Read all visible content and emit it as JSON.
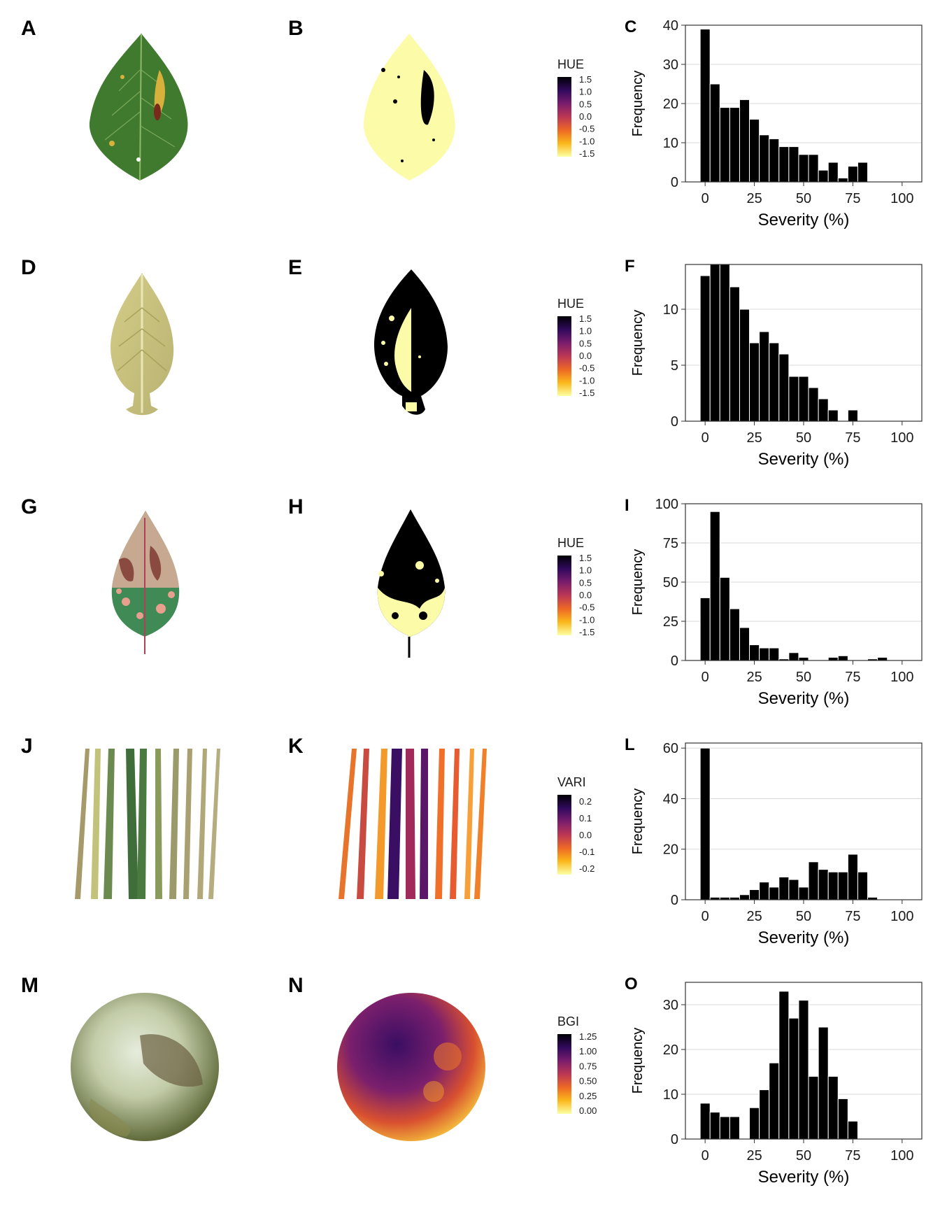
{
  "panels": [
    {
      "letter": "A",
      "kind": "leaf-photo",
      "palette": {
        "base": "#3f7a2e",
        "dark": "#2d5c20",
        "spot": "#d8b13c",
        "lesion": "#7a2a1a"
      }
    },
    {
      "letter": "B",
      "kind": "hue-mask",
      "colorbar": "cb1"
    },
    {
      "letter": "C",
      "kind": "histogram",
      "chart": 0
    },
    {
      "letter": "D",
      "kind": "leaf-photo",
      "palette": {
        "base": "#c9c27a",
        "dark": "#a8a35a",
        "spot": "#e2dca0",
        "lesion": "#b5ad68"
      }
    },
    {
      "letter": "E",
      "kind": "hue-mask",
      "colorbar": "cb2"
    },
    {
      "letter": "F",
      "kind": "histogram",
      "chart": 1
    },
    {
      "letter": "G",
      "kind": "leaf-photo",
      "palette": {
        "base": "#3f8a55",
        "dark": "#8a4a40",
        "spot": "#e8a08e",
        "lesion": "#c7a890"
      }
    },
    {
      "letter": "H",
      "kind": "hue-mask",
      "colorbar": "cb3"
    },
    {
      "letter": "I",
      "kind": "histogram",
      "chart": 2
    },
    {
      "letter": "J",
      "kind": "grass-photo"
    },
    {
      "letter": "K",
      "kind": "index-map",
      "colorbar": "cb4"
    },
    {
      "letter": "L",
      "kind": "histogram",
      "chart": 3
    },
    {
      "letter": "M",
      "kind": "dish-photo"
    },
    {
      "letter": "N",
      "kind": "index-map",
      "colorbar": "cb5"
    },
    {
      "letter": "O",
      "kind": "histogram",
      "chart": 4
    }
  ],
  "colorbars": {
    "cb1": {
      "title": "HUE",
      "ticks": [
        "1.5",
        "1.0",
        "0.5",
        "0.0",
        "-0.5",
        "-1.0",
        "-1.5"
      ]
    },
    "cb2": {
      "title": "HUE",
      "ticks": [
        "1.5",
        "1.0",
        "0.5",
        "0.0",
        "-0.5",
        "-1.0",
        "-1.5"
      ]
    },
    "cb3": {
      "title": "HUE",
      "ticks": [
        "1.5",
        "1.0",
        "0.5",
        "0.0",
        "-0.5",
        "-1.0",
        "-1.5"
      ]
    },
    "cb4": {
      "title": "VARI",
      "ticks": [
        "0.2",
        "0.1",
        "0.0",
        "-0.1",
        "-0.2"
      ]
    },
    "cb5": {
      "title": "BGI",
      "ticks": [
        "1.25",
        "1.00",
        "0.75",
        "0.50",
        "0.25",
        "0.00"
      ]
    }
  },
  "colors": {
    "bar": "#000000",
    "grid": "#d9d9d9",
    "frame": "#333333",
    "inferno": [
      "#000004",
      "#320a5e",
      "#781c6d",
      "#bc3754",
      "#ed6925",
      "#fbb61a",
      "#fcffa4"
    ],
    "mask_light": "#fbfba8",
    "mask_dark": "#000000"
  },
  "chart_data": [
    {
      "type": "bar",
      "panel": "C",
      "xlabel": "Severity (%)",
      "ylabel": "Frequency",
      "xlim": [
        -10,
        110
      ],
      "ylim": [
        0,
        40
      ],
      "x_ticks": [
        "0",
        "25",
        "50",
        "75",
        "100"
      ],
      "y_ticks": [
        "0",
        "10",
        "20",
        "30",
        "40"
      ],
      "bin_width": 5,
      "bin_centers": [
        0,
        5,
        10,
        15,
        20,
        25,
        30,
        35,
        40,
        45,
        50,
        55,
        60,
        65,
        70,
        75,
        80,
        85,
        90,
        95,
        100
      ],
      "values": [
        39,
        25,
        19,
        19,
        21,
        16,
        12,
        11,
        9,
        9,
        7,
        7,
        3,
        5,
        1,
        4,
        5,
        0,
        0,
        0,
        0
      ]
    },
    {
      "type": "bar",
      "panel": "F",
      "xlabel": "Severity (%)",
      "ylabel": "Frequency",
      "xlim": [
        -10,
        110
      ],
      "ylim": [
        0,
        14
      ],
      "x_ticks": [
        "0",
        "25",
        "50",
        "75",
        "100"
      ],
      "y_ticks": [
        "0",
        "5",
        "10"
      ],
      "bin_width": 5,
      "bin_centers": [
        0,
        5,
        10,
        15,
        20,
        25,
        30,
        35,
        40,
        45,
        50,
        55,
        60,
        65,
        70,
        75,
        80,
        85,
        90,
        95,
        100
      ],
      "values": [
        13,
        14,
        14,
        12,
        10,
        7,
        8,
        7,
        6,
        4,
        4,
        3,
        2,
        1,
        0,
        1,
        0,
        0,
        0,
        0,
        0
      ]
    },
    {
      "type": "bar",
      "panel": "I",
      "xlabel": "Severity (%)",
      "ylabel": "Frequency",
      "xlim": [
        -10,
        110
      ],
      "ylim": [
        0,
        100
      ],
      "x_ticks": [
        "0",
        "25",
        "50",
        "75",
        "100"
      ],
      "y_ticks": [
        "0",
        "25",
        "50",
        "75",
        "100"
      ],
      "bin_width": 5,
      "bin_centers": [
        0,
        5,
        10,
        15,
        20,
        25,
        30,
        35,
        40,
        45,
        50,
        55,
        60,
        65,
        70,
        75,
        80,
        85,
        90,
        95,
        100
      ],
      "values": [
        40,
        95,
        53,
        33,
        21,
        10,
        8,
        8,
        1,
        5,
        2,
        0,
        0,
        2,
        3,
        0,
        0,
        1,
        2,
        0,
        0
      ]
    },
    {
      "type": "bar",
      "panel": "L",
      "xlabel": "Severity (%)",
      "ylabel": "Frequency",
      "xlim": [
        -10,
        110
      ],
      "ylim": [
        0,
        62
      ],
      "x_ticks": [
        "0",
        "25",
        "50",
        "75",
        "100"
      ],
      "y_ticks": [
        "0",
        "20",
        "40",
        "60"
      ],
      "bin_width": 5,
      "bin_centers": [
        0,
        5,
        10,
        15,
        20,
        25,
        30,
        35,
        40,
        45,
        50,
        55,
        60,
        65,
        70,
        75,
        80,
        85,
        90,
        95,
        100
      ],
      "values": [
        60,
        1,
        1,
        1,
        2,
        4,
        7,
        5,
        9,
        8,
        5,
        15,
        12,
        11,
        11,
        18,
        11,
        1,
        0,
        0,
        0
      ]
    },
    {
      "type": "bar",
      "panel": "O",
      "xlabel": "Severity (%)",
      "ylabel": "Frequency",
      "xlim": [
        -10,
        110
      ],
      "ylim": [
        0,
        35
      ],
      "x_ticks": [
        "0",
        "25",
        "50",
        "75",
        "100"
      ],
      "y_ticks": [
        "0",
        "10",
        "20",
        "30"
      ],
      "bin_width": 5,
      "bin_centers": [
        0,
        5,
        10,
        15,
        20,
        25,
        30,
        35,
        40,
        45,
        50,
        55,
        60,
        65,
        70,
        75,
        80,
        85,
        90,
        95,
        100
      ],
      "values": [
        8,
        6,
        5,
        5,
        0,
        7,
        11,
        17,
        33,
        27,
        31,
        14,
        25,
        14,
        9,
        4,
        0,
        0,
        0,
        0,
        0
      ]
    }
  ]
}
